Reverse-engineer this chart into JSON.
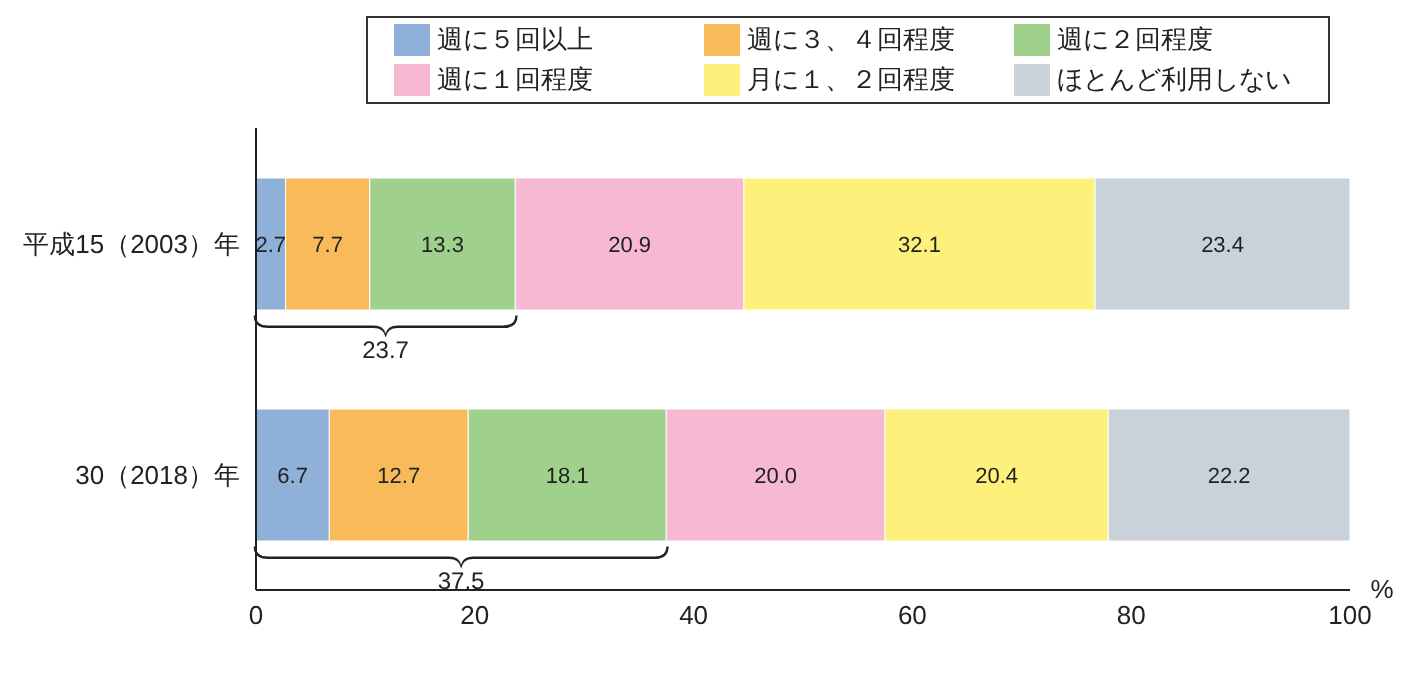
{
  "chart_data": {
    "type": "bar",
    "orientation": "horizontal",
    "stacked": true,
    "categories": [
      "平成15（2003）年",
      "30（2018）年"
    ],
    "series": [
      {
        "name": "週に５回以上",
        "color": "#8fb0d8",
        "values": [
          2.7,
          6.7
        ],
        "value_labels": [
          "2.7",
          "6.7"
        ]
      },
      {
        "name": "週に３、４回程度",
        "color": "#f9bb5a",
        "values": [
          7.7,
          12.7
        ],
        "value_labels": [
          "7.7",
          "12.7"
        ]
      },
      {
        "name": "週に２回程度",
        "color": "#9fd18c",
        "values": [
          13.3,
          18.1
        ],
        "value_labels": [
          "13.3",
          "18.1"
        ]
      },
      {
        "name": "週に１回程度",
        "color": "#f6b8d3",
        "values": [
          20.9,
          20.0
        ],
        "value_labels": [
          "20.9",
          "20.0"
        ]
      },
      {
        "name": "月に１、２回程度",
        "color": "#fdf07b",
        "values": [
          32.1,
          20.4
        ],
        "value_labels": [
          "32.1",
          "20.4"
        ]
      },
      {
        "name": "ほとんど利用しない",
        "color": "#c9d1d9",
        "values": [
          23.4,
          22.2
        ],
        "value_labels": [
          "23.4",
          "22.2"
        ]
      }
    ],
    "xlim": [
      0,
      100
    ],
    "xticks": [
      0,
      20,
      40,
      60,
      80,
      100
    ],
    "xlabel": "%",
    "legend": "top",
    "annotations": [
      "23.7",
      "37.5"
    ]
  }
}
